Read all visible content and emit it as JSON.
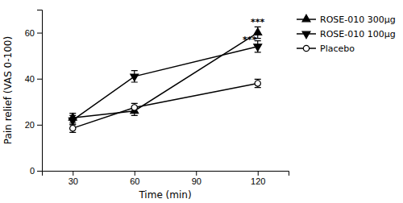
{
  "chart_data": {
    "type": "line",
    "x": [
      30,
      60,
      120
    ],
    "series": [
      {
        "name": "ROSE-010 300μg",
        "color": "#000000",
        "marker": "triangle-up",
        "line_style": "solid",
        "values": [
          23.0,
          26.0,
          60.0
        ],
        "errors": [
          2.0,
          2.0,
          2.5
        ]
      },
      {
        "name": "ROSE-010 100μg",
        "color": "#000000",
        "marker": "triangle-down",
        "line_style": "solid",
        "values": [
          22.0,
          41.0,
          54.0
        ],
        "errors": [
          2.0,
          2.5,
          2.5
        ]
      },
      {
        "name": "Placebo",
        "color": "#000000",
        "marker": "circle-open",
        "line_style": "solid",
        "values": [
          18.5,
          27.5,
          38.0
        ],
        "errors": [
          1.8,
          1.8,
          1.8
        ]
      }
    ],
    "x_label": "Time (min)",
    "y_label": "Pain relief (VAS 0-100)",
    "xlim": [
      15,
      135
    ],
    "ylim": [
      0,
      70
    ],
    "xticks": [
      30,
      60,
      90,
      120
    ],
    "yticks": [
      0,
      20,
      40,
      60
    ],
    "annotations": [
      {
        "text": "***",
        "x": 120,
        "y": 63.5
      },
      {
        "text": "***",
        "x": 116,
        "y": 55.5
      }
    ],
    "grid": false,
    "legend": "upper right"
  }
}
